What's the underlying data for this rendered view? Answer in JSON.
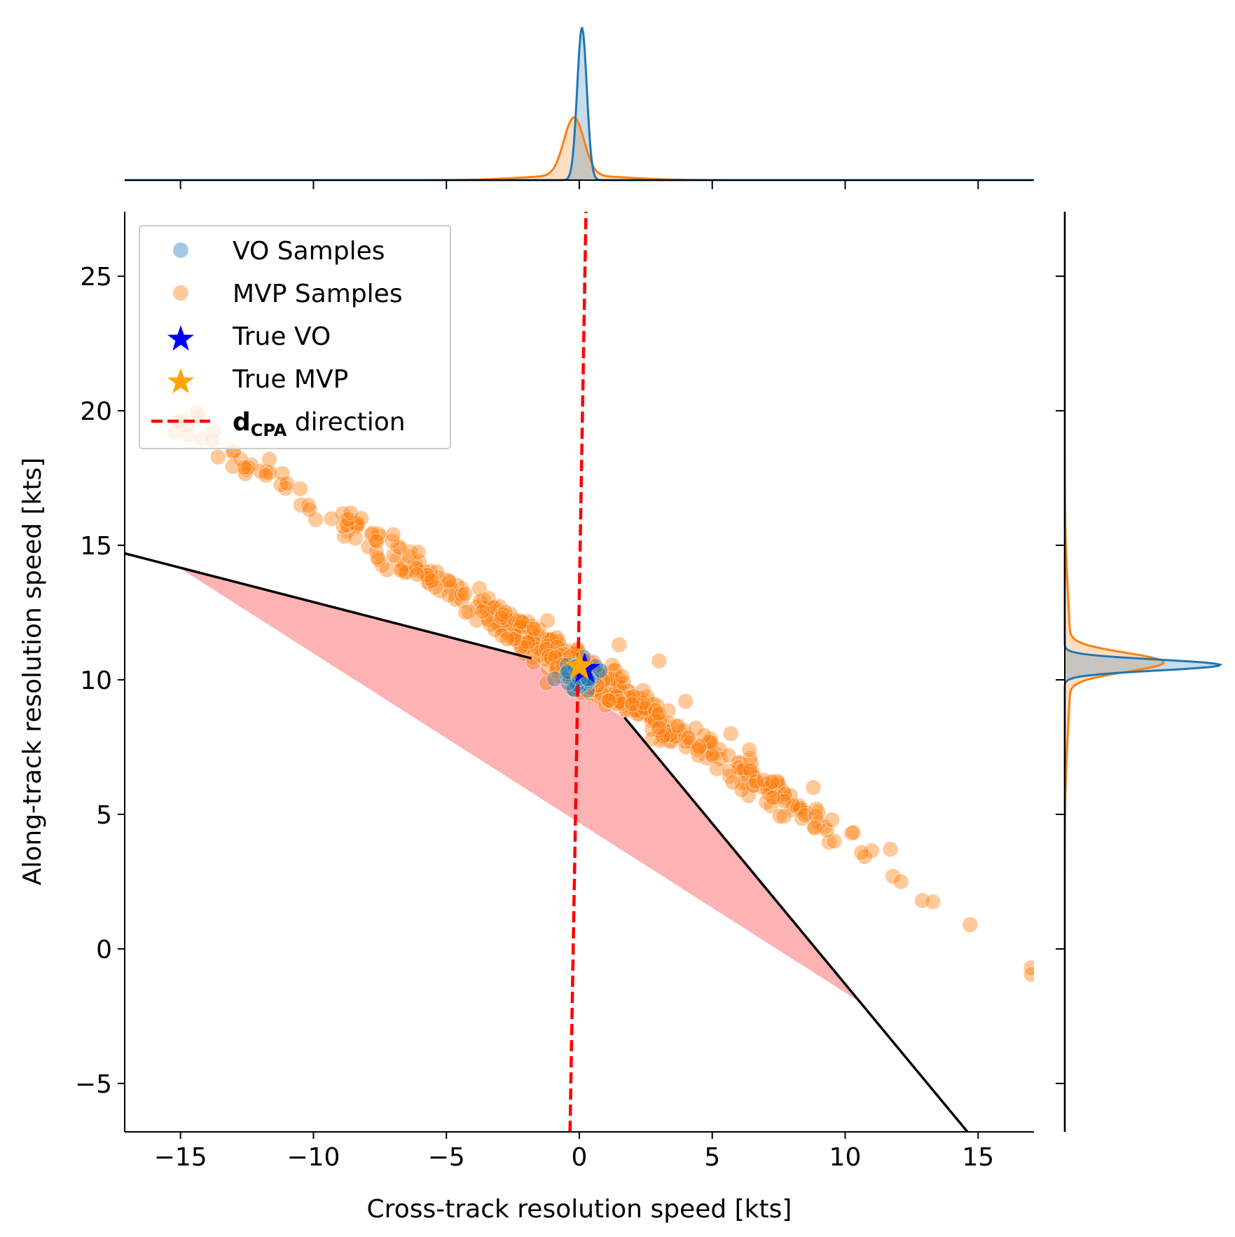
{
  "chart_data": {
    "type": "scatter",
    "xlabel": "Cross-track resolution speed [kts]",
    "ylabel": "Along-track resolution speed [kts]",
    "xlim": [
      -17.1,
      17.1
    ],
    "ylim": [
      -6.8,
      27.4
    ],
    "x_ticks": [
      -15,
      -10,
      -5,
      0,
      5,
      10,
      15
    ],
    "x_tick_labels": [
      "−15",
      "−10",
      "−5",
      "0",
      "5",
      "10",
      "15"
    ],
    "y_ticks": [
      -5,
      0,
      5,
      10,
      15,
      20,
      25
    ],
    "y_tick_labels": [
      "−5",
      "0",
      "5",
      "10",
      "15",
      "20",
      "25"
    ],
    "grid": false,
    "legend_position": "upper left",
    "legend": [
      {
        "label": "VO Samples",
        "marker": "circle",
        "color": "#a6c8e4"
      },
      {
        "label": "MVP Samples",
        "marker": "circle",
        "color": "#ffc899"
      },
      {
        "label": "True VO",
        "marker": "star",
        "color": "#0000ff"
      },
      {
        "label": "True MVP",
        "marker": "star",
        "color": "#ffa500"
      },
      {
        "label_bold": "d",
        "label_sub": "CPA",
        "label_rest": " direction",
        "marker": "dashed-line",
        "color": "#ff0000"
      }
    ],
    "colors": {
      "vo": "#1f77b4",
      "mvp": "#ff7f0e",
      "true_vo": "#0000ff",
      "true_mvp": "#ffa500",
      "dcpa": "#ff0000",
      "cone_fill": "#fdb2b4",
      "cone_edge": "#000000"
    },
    "cone_boundary": {
      "left_line": [
        [
          -17.1,
          14.7
        ],
        [
          -1.8,
          10.8
        ]
      ],
      "right_line": [
        [
          1.7,
          8.6
        ],
        [
          14.6,
          -6.8
        ]
      ]
    },
    "cone_fill_polygon": [
      [
        -15.1,
        14.2
      ],
      [
        -1.8,
        10.8
      ],
      [
        -0.9,
        10.0
      ],
      [
        1.7,
        8.6
      ],
      [
        10.6,
        -2.0
      ]
    ],
    "dcpa_line": [
      [
        -0.35,
        -6.8
      ],
      [
        0.25,
        27.4
      ]
    ],
    "true_vo": [
      0.2,
      10.4
    ],
    "true_mvp": [
      0.0,
      10.5
    ],
    "mvp_trend": {
      "x_start": -15.2,
      "x_end": 17.0,
      "slope": -0.617,
      "intercept": 10.35
    },
    "mvp_outliers": [
      [
        -15.2,
        19.2
      ],
      [
        -14.7,
        19.1
      ],
      [
        -14.2,
        18.95
      ],
      [
        -13.8,
        18.9
      ],
      [
        -13.0,
        18.5
      ],
      [
        -12.6,
        17.9
      ],
      [
        -11.8,
        17.6
      ],
      [
        -11.0,
        17.3
      ],
      [
        -10.5,
        17.1
      ],
      [
        -8.6,
        16.2
      ],
      [
        -8.2,
        16.0
      ],
      [
        -7.0,
        15.4
      ],
      [
        8.8,
        6.0
      ],
      [
        11.7,
        3.7
      ],
      [
        11.8,
        2.7
      ],
      [
        12.1,
        2.5
      ],
      [
        12.9,
        1.8
      ],
      [
        13.3,
        1.75
      ],
      [
        14.7,
        0.9
      ],
      [
        17.0,
        -0.7
      ],
      [
        17.0,
        -0.95
      ],
      [
        3.0,
        10.7
      ],
      [
        2.4,
        9.6
      ],
      [
        4.0,
        9.2
      ],
      [
        1.5,
        11.3
      ],
      [
        -1.2,
        12.2
      ],
      [
        6.4,
        7.4
      ],
      [
        5.7,
        8.0
      ],
      [
        9.5,
        4.8
      ],
      [
        -4.3,
        13.2
      ]
    ],
    "vo_cluster": {
      "center": [
        0.0,
        10.15
      ],
      "spread": [
        0.35,
        0.3
      ]
    },
    "kde_x": {
      "vo": {
        "mean": 0.1,
        "sd": 0.18,
        "peak": 1.0
      },
      "mvp": {
        "mean": -0.2,
        "sd": 0.38,
        "peak": 0.38,
        "tail_sd": 1.8,
        "tail_weight": 0.08
      }
    },
    "kde_y": {
      "vo": {
        "mean": 10.55,
        "sd": 0.2,
        "peak": 1.0
      },
      "mvp": {
        "mean": 10.65,
        "sd": 0.35,
        "peak": 0.6,
        "tail_sd": 2.4,
        "tail_weight": 0.06
      }
    }
  }
}
